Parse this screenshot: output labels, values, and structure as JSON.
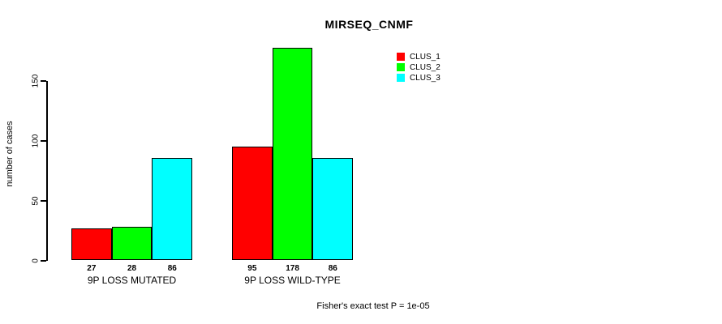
{
  "title": "MIRSEQ_CNMF",
  "footer": "Fisher's exact test P = 1e-05",
  "chart_data": {
    "type": "bar",
    "title": "MIRSEQ_CNMF",
    "xlabel": "",
    "ylabel": "number of cases",
    "categories": [
      "9P LOSS MUTATED",
      "9P LOSS WILD-TYPE"
    ],
    "series": [
      {
        "name": "CLUS_1",
        "color": "#ff0000",
        "values": [
          27,
          95
        ]
      },
      {
        "name": "CLUS_2",
        "color": "#00ff00",
        "values": [
          28,
          178
        ]
      },
      {
        "name": "CLUS_3",
        "color": "#00ffff",
        "values": [
          86,
          86
        ]
      }
    ],
    "bar_value_labels": [
      [
        "27",
        "28",
        "86"
      ],
      [
        "95",
        "178",
        "86"
      ]
    ],
    "y_ticks": [
      "0",
      "50",
      "100",
      "150"
    ],
    "ylim": [
      0,
      185
    ],
    "grid": false,
    "legend_position": "top-right",
    "annotation": "Fisher's exact test P = 1e-05"
  }
}
